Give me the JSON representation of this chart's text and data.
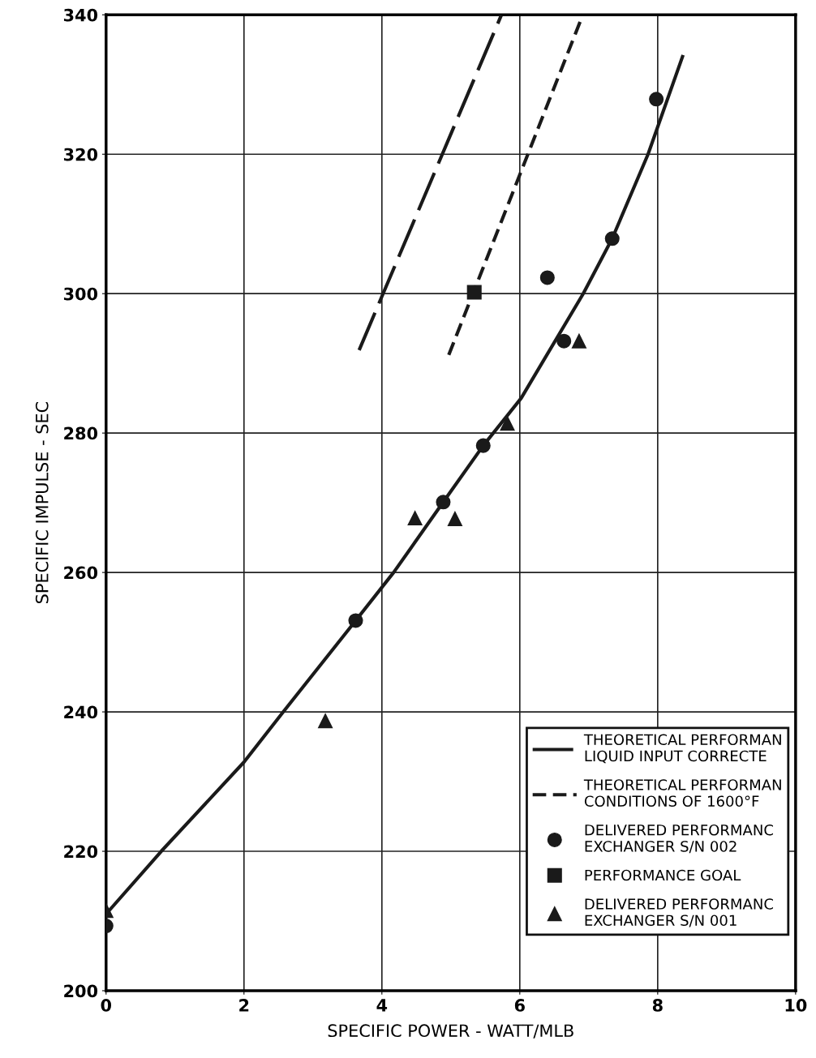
{
  "chart_data": {
    "type": "line",
    "xlabel": "SPECIFIC POWER - WATT/MLB",
    "ylabel": "SPECIFIC IMPULSE - SEC",
    "xlim": [
      0,
      10
    ],
    "ylim": [
      200,
      340
    ],
    "xticks": [
      0,
      2,
      4,
      6,
      8,
      10
    ],
    "yticks": [
      200,
      220,
      240,
      260,
      280,
      300,
      320,
      340
    ],
    "grid": true,
    "legend": "bottom right",
    "series": [
      {
        "line_style": "solid",
        "color": "#1a1a1a",
        "x": [
          0,
          0.8,
          2,
          2.57,
          3.62,
          4.17,
          4.89,
          5.47,
          6.02,
          6.92,
          7.34,
          7.86,
          8.36
        ],
        "values": [
          211,
          220,
          232.8,
          240,
          253.1,
          260,
          270.1,
          278.2,
          285,
          300,
          307.9,
          320,
          334
        ]
      },
      {
        "line_style": "dashed",
        "name": "THEORETICAL PERFORMAN\nLIQUID INPUT CORRECTE",
        "color": "#1a1a1a",
        "x": [
          3.67,
          5.73
        ],
        "values": [
          291.9,
          339.9
        ]
      },
      {
        "line_style": "dotted",
        "name": "THEORETICAL PERFORMAN\nCONDITIONS OF 1600°F",
        "color": "#1a1a1a",
        "x": [
          4.97,
          6.91
        ],
        "values": [
          291.2,
          339.9
        ]
      },
      {
        "type": "scatter",
        "marker": "circle",
        "name": "DELIVERED PERFORMANC\nEXCHANGER S/N 002",
        "color": "#1a1a1a",
        "x": [
          0,
          3.62,
          4.89,
          5.47,
          6.4,
          6.64,
          7.34,
          7.98
        ],
        "values": [
          209.3,
          253.1,
          270.1,
          278.2,
          302.3,
          293.2,
          307.9,
          327.9
        ]
      },
      {
        "type": "scatter",
        "marker": "square",
        "name": "PERFORMANCE GOAL",
        "color": "#1a1a1a",
        "x": [
          5.34
        ],
        "values": [
          300.2
        ]
      },
      {
        "type": "scatter",
        "marker": "triangle",
        "name": "DELIVERED PERFORMANC\nEXCHANGER S/N 001",
        "color": "#1a1a1a",
        "x": [
          0,
          3.18,
          4.48,
          5.06,
          5.82,
          6.86
        ],
        "values": [
          211.5,
          238.7,
          267.8,
          267.7,
          281.4,
          293.2
        ]
      }
    ]
  }
}
